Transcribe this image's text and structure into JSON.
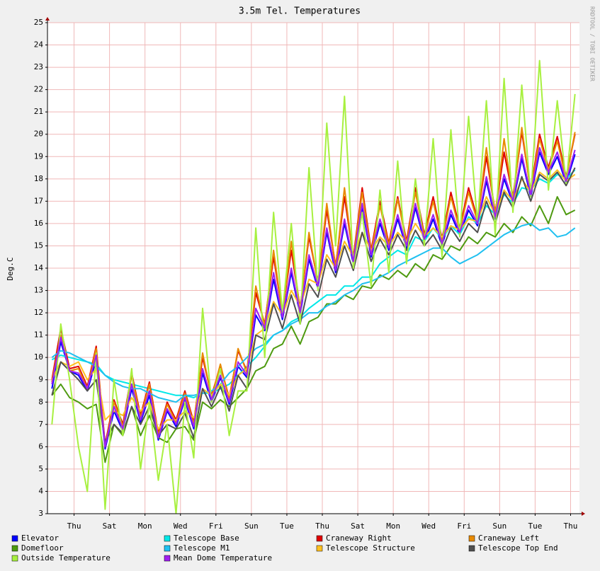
{
  "chart_data": {
    "type": "line",
    "title": "3.5m Tel. Temperatures",
    "y_label": "Deg.C",
    "side_note": "RRDTOOL / TOBI OETIKER",
    "xlim": [
      0,
      30
    ],
    "ylim": [
      3,
      25
    ],
    "grid": true,
    "yticks": [
      3,
      4,
      5,
      6,
      7,
      8,
      9,
      10,
      11,
      12,
      13,
      14,
      15,
      16,
      17,
      18,
      19,
      20,
      21,
      22,
      23,
      24,
      25
    ],
    "xticks": [
      {
        "value": 1.5,
        "label": "Thu"
      },
      {
        "value": 3.5,
        "label": "Sat"
      },
      {
        "value": 5.5,
        "label": "Mon"
      },
      {
        "value": 7.5,
        "label": "Wed"
      },
      {
        "value": 9.5,
        "label": "Fri"
      },
      {
        "value": 11.5,
        "label": "Sun"
      },
      {
        "value": 13.5,
        "label": "Tue"
      },
      {
        "value": 15.5,
        "label": "Thu"
      },
      {
        "value": 17.5,
        "label": "Sat"
      },
      {
        "value": 19.5,
        "label": "Mon"
      },
      {
        "value": 21.5,
        "label": "Wed"
      },
      {
        "value": 23.5,
        "label": "Fri"
      },
      {
        "value": 25.5,
        "label": "Sun"
      },
      {
        "value": 27.5,
        "label": "Tue"
      },
      {
        "value": 29.5,
        "label": "Thu"
      }
    ],
    "x": [
      0.25,
      0.75,
      1.25,
      1.75,
      2.25,
      2.75,
      3.25,
      3.75,
      4.25,
      4.75,
      5.25,
      5.75,
      6.25,
      6.75,
      7.25,
      7.75,
      8.25,
      8.75,
      9.25,
      9.75,
      10.25,
      10.75,
      11.25,
      11.75,
      12.25,
      12.75,
      13.25,
      13.75,
      14.25,
      14.75,
      15.25,
      15.75,
      16.25,
      16.75,
      17.25,
      17.75,
      18.25,
      18.75,
      19.25,
      19.75,
      20.25,
      20.75,
      21.25,
      21.75,
      22.25,
      22.75,
      23.25,
      23.75,
      24.25,
      24.75,
      25.25,
      25.75,
      26.25,
      26.75,
      27.25,
      27.75,
      28.25,
      28.75,
      29.25,
      29.75
    ],
    "series": [
      {
        "name": "Elevator",
        "color": "#0000ff",
        "values": [
          8.6,
          10.7,
          9.4,
          9.2,
          8.5,
          9.9,
          5.9,
          7.6,
          6.7,
          8.6,
          7.1,
          8.3,
          6.3,
          7.6,
          6.9,
          8.1,
          6.8,
          9.3,
          8.0,
          9.1,
          7.9,
          9.6,
          9.1,
          11.9,
          11.2,
          13.5,
          11.7,
          13.8,
          11.9,
          14.4,
          13.1,
          15.6,
          13.8,
          16.0,
          14.2,
          16.7,
          14.5,
          16.0,
          14.8,
          16.2,
          14.9,
          16.7,
          15.2,
          16.2,
          15.0,
          16.4,
          15.5,
          16.6,
          15.9,
          17.9,
          16.2,
          18.0,
          16.9,
          18.9,
          17.2,
          19.2,
          18.2,
          19.0,
          17.8,
          19.1
        ]
      },
      {
        "name": "Telescope Base",
        "color": "#00e8e8",
        "values": [
          9.9,
          10.1,
          10.0,
          9.9,
          9.8,
          9.7,
          9.2,
          9.0,
          8.9,
          8.8,
          8.7,
          8.6,
          8.5,
          8.4,
          8.3,
          8.3,
          8.2,
          8.4,
          8.4,
          8.6,
          8.8,
          9.2,
          9.6,
          10.0,
          10.5,
          11.0,
          11.2,
          11.6,
          11.8,
          12.2,
          12.5,
          12.8,
          12.8,
          13.2,
          13.2,
          13.6,
          13.6,
          14.2,
          14.5,
          14.8,
          14.6,
          15.4,
          15.2,
          15.8,
          15.3,
          15.9,
          15.5,
          16.3,
          16.0,
          16.8,
          16.4,
          17.3,
          16.9,
          17.6,
          17.5,
          18.0,
          17.8,
          18.2,
          18.0,
          18.4
        ]
      },
      {
        "name": "Craneway Right",
        "color": "#e00000",
        "values": [
          9.0,
          11.3,
          9.5,
          9.6,
          8.7,
          10.5,
          6.1,
          8.1,
          7.0,
          9.3,
          7.4,
          8.9,
          6.6,
          8.0,
          7.2,
          8.5,
          7.1,
          10.0,
          8.3,
          9.6,
          8.2,
          10.3,
          9.4,
          12.9,
          11.5,
          14.5,
          12.0,
          14.8,
          12.2,
          15.4,
          13.4,
          16.6,
          14.1,
          17.2,
          14.5,
          17.6,
          14.8,
          17.0,
          15.1,
          17.2,
          15.2,
          17.6,
          15.5,
          17.2,
          15.3,
          17.4,
          15.8,
          17.6,
          16.2,
          19.0,
          16.5,
          19.2,
          17.2,
          20.1,
          17.5,
          20.0,
          18.5,
          19.9,
          18.1,
          20.0
        ]
      },
      {
        "name": "Craneway Left",
        "color": "#e88a00",
        "values": [
          8.9,
          11.0,
          9.4,
          9.5,
          8.6,
          10.4,
          6.0,
          8.0,
          6.9,
          9.2,
          7.3,
          8.8,
          6.5,
          7.9,
          7.1,
          8.4,
          7.0,
          10.2,
          8.2,
          9.7,
          8.1,
          10.4,
          9.3,
          13.2,
          11.4,
          14.8,
          11.9,
          15.2,
          12.1,
          15.6,
          13.3,
          16.9,
          14.0,
          17.6,
          14.4,
          17.4,
          14.7,
          16.8,
          15.0,
          17.1,
          15.1,
          17.4,
          15.4,
          17.0,
          15.2,
          17.2,
          15.7,
          17.4,
          16.1,
          19.4,
          16.4,
          19.8,
          17.1,
          20.3,
          17.4,
          19.8,
          18.4,
          19.7,
          18.0,
          20.1
        ]
      },
      {
        "name": "Domefloor",
        "color": "#4e9a10",
        "values": [
          8.3,
          8.8,
          8.2,
          8.0,
          7.7,
          7.9,
          5.3,
          7.0,
          6.5,
          7.8,
          6.5,
          7.4,
          6.4,
          6.2,
          6.8,
          6.9,
          6.3,
          8.0,
          7.7,
          8.1,
          7.8,
          8.2,
          8.6,
          9.4,
          9.6,
          10.4,
          10.6,
          11.4,
          10.6,
          11.6,
          11.8,
          12.4,
          12.4,
          12.8,
          12.6,
          13.2,
          13.1,
          13.7,
          13.5,
          13.9,
          13.6,
          14.2,
          13.9,
          14.6,
          14.4,
          15.0,
          14.8,
          15.4,
          15.1,
          15.6,
          15.4,
          16.0,
          15.6,
          16.3,
          15.9,
          16.8,
          16.0,
          17.2,
          16.4,
          16.6
        ]
      },
      {
        "name": "Telescope M1",
        "color": "#20c0f0",
        "values": [
          10.0,
          10.3,
          10.2,
          10.0,
          9.8,
          9.6,
          9.2,
          8.9,
          8.7,
          8.6,
          8.6,
          8.4,
          8.2,
          8.1,
          8.0,
          8.3,
          8.3,
          8.4,
          8.5,
          8.8,
          9.3,
          9.6,
          10.0,
          10.4,
          10.6,
          11.0,
          11.2,
          11.5,
          11.7,
          12.0,
          12.0,
          12.3,
          12.5,
          12.8,
          13.0,
          13.3,
          13.4,
          13.6,
          13.8,
          14.1,
          14.3,
          14.5,
          14.7,
          14.9,
          14.9,
          14.5,
          14.2,
          14.4,
          14.6,
          14.9,
          15.2,
          15.5,
          15.7,
          15.9,
          16.0,
          15.7,
          15.8,
          15.4,
          15.5,
          15.8
        ]
      },
      {
        "name": "Telescope Structure",
        "color": "#ffc020",
        "values": [
          9.0,
          9.8,
          9.6,
          9.8,
          9.0,
          9.5,
          7.2,
          7.6,
          7.4,
          8.2,
          7.6,
          8.0,
          6.8,
          7.2,
          7.2,
          7.6,
          7.3,
          8.6,
          8.3,
          8.8,
          8.3,
          9.2,
          9.5,
          11.0,
          11.3,
          12.5,
          11.9,
          13.0,
          12.3,
          13.5,
          13.3,
          14.6,
          14.0,
          15.2,
          14.5,
          15.6,
          14.8,
          15.4,
          15.0,
          15.6,
          15.2,
          16.0,
          15.4,
          15.8,
          15.4,
          15.9,
          15.7,
          16.2,
          16.1,
          17.2,
          16.4,
          17.5,
          17.0,
          18.0,
          17.4,
          18.3,
          18.0,
          18.4,
          17.9,
          18.2
        ]
      },
      {
        "name": "Telescope Top End",
        "color": "#505050",
        "values": [
          8.3,
          9.8,
          9.4,
          9.0,
          8.5,
          9.0,
          6.2,
          7.0,
          6.6,
          7.8,
          7.0,
          7.8,
          6.5,
          7.0,
          6.8,
          7.5,
          6.4,
          8.6,
          7.8,
          8.7,
          7.6,
          9.2,
          8.6,
          11.0,
          10.8,
          12.4,
          11.3,
          12.8,
          11.5,
          13.3,
          12.7,
          14.4,
          13.6,
          15.0,
          13.9,
          15.6,
          14.3,
          15.3,
          14.6,
          15.5,
          14.8,
          15.7,
          15.0,
          15.5,
          14.8,
          15.8,
          15.2,
          16.0,
          15.6,
          17.0,
          16.0,
          17.4,
          16.7,
          18.1,
          17.0,
          18.2,
          17.9,
          18.3,
          17.7,
          18.5
        ]
      },
      {
        "name": "Outside Temperature",
        "color": "#a8f040",
        "values": [
          7.0,
          11.5,
          9.0,
          6.0,
          4.0,
          10.2,
          3.2,
          9.0,
          6.5,
          9.5,
          5.0,
          8.0,
          4.5,
          7.0,
          3.0,
          8.0,
          5.5,
          12.2,
          8.0,
          9.5,
          6.5,
          8.5,
          8.5,
          15.8,
          10.0,
          16.5,
          12.0,
          16.0,
          11.5,
          18.5,
          13.0,
          20.5,
          15.0,
          21.7,
          14.0,
          16.5,
          13.2,
          17.5,
          13.8,
          18.8,
          14.2,
          18.0,
          15.0,
          19.8,
          14.5,
          20.2,
          15.4,
          20.8,
          16.0,
          21.5,
          15.5,
          22.5,
          16.5,
          22.2,
          17.2,
          23.3,
          17.5,
          21.5,
          17.8,
          21.8
        ]
      },
      {
        "name": "Mean Dome Temperature",
        "color": "#a020f0",
        "values": [
          8.8,
          10.9,
          9.4,
          9.3,
          8.6,
          10.1,
          6.0,
          7.8,
          6.8,
          8.8,
          7.2,
          8.5,
          6.4,
          7.7,
          7.0,
          8.2,
          6.9,
          9.5,
          8.1,
          9.2,
          8.0,
          9.8,
          9.2,
          12.2,
          11.3,
          13.8,
          11.8,
          14.0,
          12.0,
          14.6,
          13.2,
          15.8,
          13.9,
          16.2,
          14.3,
          16.9,
          14.6,
          16.2,
          14.9,
          16.4,
          15.0,
          16.9,
          15.3,
          16.4,
          15.1,
          16.6,
          15.6,
          16.8,
          16.0,
          18.1,
          16.3,
          18.2,
          17.0,
          19.1,
          17.3,
          19.4,
          18.3,
          19.2,
          17.9,
          19.3
        ]
      }
    ]
  }
}
